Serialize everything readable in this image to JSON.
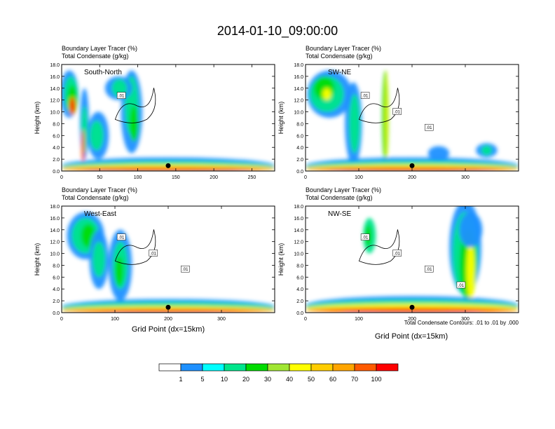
{
  "title": "2014-01-10_09:00:00",
  "panel_header": {
    "line1": "Boundary Layer Tracer   (%)",
    "line2": "Total Condensate   (g/kg)"
  },
  "ylabel": "Height (km)",
  "xlabel": "Grid Point (dx=15km)",
  "contour_note": "Total Condensate Contours: .01 to .01 by .000",
  "colors": [
    "#ffffff",
    "#1e90ff",
    "#00ffff",
    "#00e68c",
    "#00dc00",
    "#a0e632",
    "#ffff00",
    "#ffcd00",
    "#ffa500",
    "#ff5a00",
    "#ff0000"
  ],
  "chart_data": [
    {
      "type": "heatmap",
      "label": "South-North",
      "xlim": [
        0,
        280
      ],
      "ylim": [
        0,
        18
      ],
      "xticks": [
        "0",
        "50",
        "100",
        "150",
        "200",
        "250"
      ],
      "xtick_values": [
        0,
        50,
        100,
        150,
        200,
        250
      ],
      "yticks": [
        "0.0",
        "2.0",
        "4.0",
        "6.0",
        "8.0",
        "10.0",
        "12.0",
        "14.0",
        "16.0",
        "18.0"
      ],
      "contour_labels": [
        ".01"
      ],
      "marker_x": 140
    },
    {
      "type": "heatmap",
      "label": "SW-NE",
      "xlim": [
        0,
        400
      ],
      "ylim": [
        0,
        18
      ],
      "xticks": [
        "0",
        "100",
        "200",
        "300"
      ],
      "xtick_values": [
        0,
        100,
        200,
        300
      ],
      "yticks": [
        "0.0",
        "2.0",
        "4.0",
        "6.0",
        "8.0",
        "10.0",
        "12.0",
        "14.0",
        "16.0",
        "18.0"
      ],
      "contour_labels": [
        ".01",
        ".01",
        ".01"
      ],
      "marker_x": 200
    },
    {
      "type": "heatmap",
      "label": "West-East",
      "xlim": [
        0,
        400
      ],
      "ylim": [
        0,
        18
      ],
      "xticks": [
        "0",
        "100",
        "200",
        "300"
      ],
      "xtick_values": [
        0,
        100,
        200,
        300
      ],
      "yticks": [
        "0.0",
        "2.0",
        "4.0",
        "6.0",
        "8.0",
        "10.0",
        "12.0",
        "14.0",
        "16.0",
        "18.0"
      ],
      "contour_labels": [
        ".01",
        ".01",
        ".01"
      ],
      "marker_x": 200
    },
    {
      "type": "heatmap",
      "label": "NW-SE",
      "xlim": [
        0,
        400
      ],
      "ylim": [
        0,
        18
      ],
      "xticks": [
        "0",
        "100",
        "200",
        "300"
      ],
      "xtick_values": [
        0,
        100,
        200,
        300
      ],
      "yticks": [
        "0.0",
        "2.0",
        "4.0",
        "6.0",
        "8.0",
        "10.0",
        "12.0",
        "14.0",
        "16.0",
        "18.0"
      ],
      "contour_labels": [
        ".01",
        ".01",
        ".01",
        ".01"
      ],
      "marker_x": 200
    }
  ],
  "legend": {
    "labels": [
      "1",
      "5",
      "10",
      "20",
      "30",
      "40",
      "50",
      "60",
      "70",
      "100"
    ]
  }
}
